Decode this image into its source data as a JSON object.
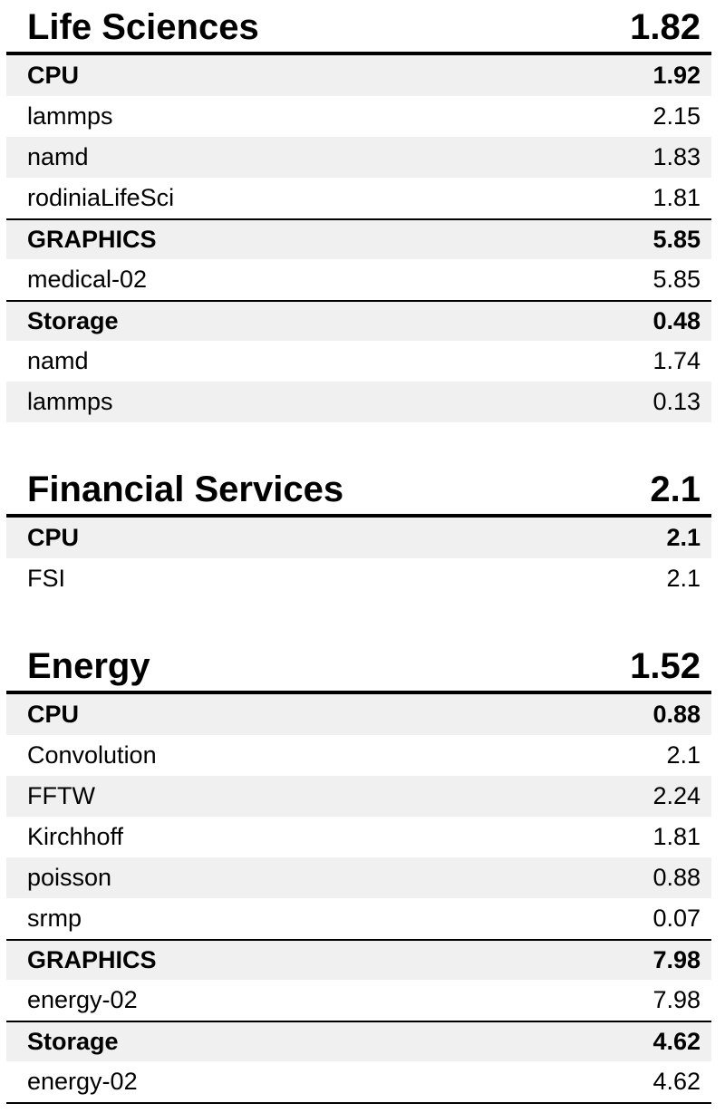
{
  "report": {
    "colors": {
      "stripe": "#f0f0f0",
      "rule": "#000000",
      "text": "#000000"
    },
    "sections": [
      {
        "title": "Life Sciences",
        "total": "1.82",
        "rows": [
          {
            "label": "CPU",
            "value": "1.92",
            "kind": "group"
          },
          {
            "label": "lammps",
            "value": "2.15",
            "kind": "item"
          },
          {
            "label": "namd",
            "value": "1.83",
            "kind": "item"
          },
          {
            "label": "rodiniaLifeSci",
            "value": "1.81",
            "kind": "item"
          },
          {
            "label": "GRAPHICS",
            "value": "5.85",
            "kind": "group"
          },
          {
            "label": "medical-02",
            "value": "5.85",
            "kind": "item"
          },
          {
            "label": "Storage",
            "value": "0.48",
            "kind": "group"
          },
          {
            "label": "namd",
            "value": "1.74",
            "kind": "item"
          },
          {
            "label": "lammps",
            "value": "0.13",
            "kind": "item"
          }
        ]
      },
      {
        "title": "Financial Services",
        "total": "2.1",
        "rows": [
          {
            "label": "CPU",
            "value": "2.1",
            "kind": "group"
          },
          {
            "label": "FSI",
            "value": "2.1",
            "kind": "item"
          }
        ]
      },
      {
        "title": "Energy",
        "total": "1.52",
        "rows": [
          {
            "label": "CPU",
            "value": "0.88",
            "kind": "group"
          },
          {
            "label": "Convolution",
            "value": "2.1",
            "kind": "item"
          },
          {
            "label": "FFTW",
            "value": "2.24",
            "kind": "item"
          },
          {
            "label": "Kirchhoff",
            "value": "1.81",
            "kind": "item"
          },
          {
            "label": "poisson",
            "value": "0.88",
            "kind": "item"
          },
          {
            "label": "srmp",
            "value": "0.07",
            "kind": "item"
          },
          {
            "label": "GRAPHICS",
            "value": "7.98",
            "kind": "group"
          },
          {
            "label": "energy-02",
            "value": "7.98",
            "kind": "item"
          },
          {
            "label": "Storage",
            "value": "4.62",
            "kind": "group"
          },
          {
            "label": "energy-02",
            "value": "4.62",
            "kind": "item"
          }
        ]
      }
    ]
  }
}
